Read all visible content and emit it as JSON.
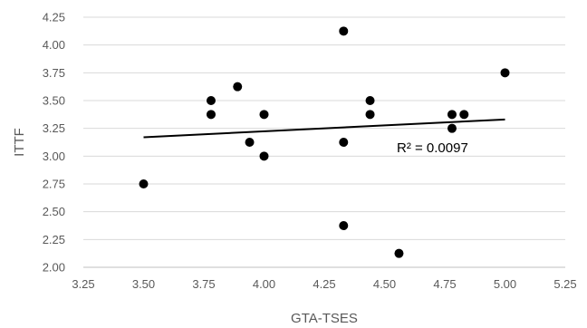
{
  "chart_data": {
    "type": "scatter",
    "xlabel": "GTA-TSES",
    "ylabel": "ITTF",
    "xlim": [
      3.25,
      5.25
    ],
    "ylim": [
      2.0,
      4.25
    ],
    "x_ticks": [
      "3.25",
      "3.50",
      "3.75",
      "4.00",
      "4.25",
      "4.50",
      "4.75",
      "5.00",
      "5.25"
    ],
    "y_ticks": [
      "2.00",
      "2.25",
      "2.50",
      "2.75",
      "3.00",
      "3.25",
      "3.50",
      "3.75",
      "4.00",
      "4.25"
    ],
    "grid": "horizontal",
    "points": [
      {
        "x": 3.5,
        "y": 2.75
      },
      {
        "x": 3.78,
        "y": 3.5
      },
      {
        "x": 3.78,
        "y": 3.375
      },
      {
        "x": 3.89,
        "y": 3.625
      },
      {
        "x": 3.94,
        "y": 3.125
      },
      {
        "x": 4.0,
        "y": 3.375
      },
      {
        "x": 4.0,
        "y": 3.0
      },
      {
        "x": 4.33,
        "y": 4.125
      },
      {
        "x": 4.33,
        "y": 3.125
      },
      {
        "x": 4.33,
        "y": 2.375
      },
      {
        "x": 4.44,
        "y": 3.5
      },
      {
        "x": 4.44,
        "y": 3.375
      },
      {
        "x": 4.56,
        "y": 2.125
      },
      {
        "x": 4.78,
        "y": 3.375
      },
      {
        "x": 4.78,
        "y": 3.25
      },
      {
        "x": 4.83,
        "y": 3.375
      },
      {
        "x": 5.0,
        "y": 3.75
      }
    ],
    "trendline": {
      "type": "linear",
      "x": [
        3.5,
        5.0
      ],
      "y": [
        3.17,
        3.33
      ],
      "label": "R² = 0.0097"
    },
    "colors": {
      "points": "#000000",
      "trendline": "#000000",
      "grid": "#d9d9d9",
      "axis": "#bfbfbf"
    }
  }
}
